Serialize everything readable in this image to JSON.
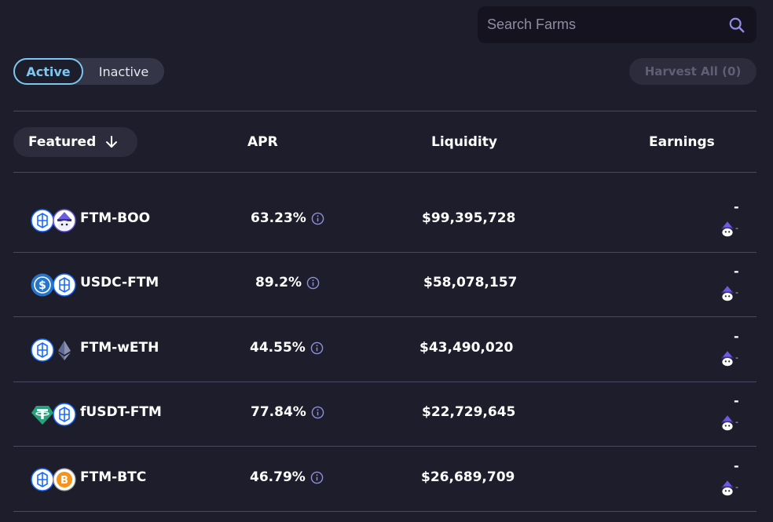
{
  "search": {
    "placeholder": "Search Farms"
  },
  "toggle": {
    "active_label": "Active",
    "inactive_label": "Inactive"
  },
  "harvest_all_label": "Harvest All (0)",
  "header": {
    "featured_label": "Featured",
    "apr_label": "APR",
    "liquidity_label": "Liquidity",
    "earnings_label": "Earnings"
  },
  "farms": [
    {
      "pair": "FTM-BOO",
      "tokens": [
        "fantom-icon",
        "boo-icon"
      ],
      "apr": "63.23%",
      "liquidity": "$99,395,728",
      "earnings": "-",
      "earnings_sub": "-"
    },
    {
      "pair": "USDC-FTM",
      "tokens": [
        "usdc-icon",
        "fantom-icon"
      ],
      "apr": "89.2%",
      "liquidity": "$58,078,157",
      "earnings": "-",
      "earnings_sub": "-"
    },
    {
      "pair": "FTM-wETH",
      "tokens": [
        "fantom-icon",
        "eth-icon"
      ],
      "apr": "44.55%",
      "liquidity": "$43,490,020",
      "earnings": "-",
      "earnings_sub": "-"
    },
    {
      "pair": "fUSDT-FTM",
      "tokens": [
        "tether-icon",
        "fantom-icon"
      ],
      "apr": "77.84%",
      "liquidity": "$22,729,645",
      "earnings": "-",
      "earnings_sub": "-"
    },
    {
      "pair": "FTM-BTC",
      "tokens": [
        "fantom-icon",
        "btc-icon"
      ],
      "apr": "46.79%",
      "liquidity": "$26,689,709",
      "earnings": "-",
      "earnings_sub": "-"
    }
  ],
  "colors": {
    "background": "#1e1d2c",
    "accent": "#7cc7f0",
    "divider": "#4a4960",
    "info_icon": "#8f8fd8"
  }
}
